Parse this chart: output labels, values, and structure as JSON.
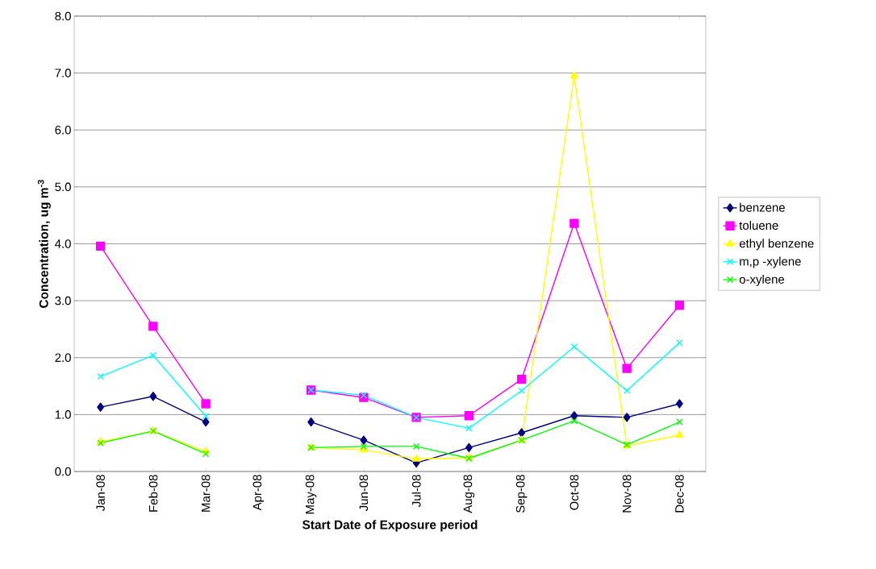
{
  "chart_data": {
    "type": "line",
    "xlabel": "Start Date of Exposure period",
    "ylabel": "Concentration, ug m$^{-3}$",
    "categories": [
      "Jan-08",
      "Feb-08",
      "Mar-08",
      "Apr-08",
      "May-08",
      "Jun-08",
      "Jul-08",
      "Aug-08",
      "Sep-08",
      "Oct-08",
      "Nov-08",
      "Dec-08"
    ],
    "series": [
      {
        "name": "benzene",
        "color": "#000080",
        "marker": "diamond",
        "values": [
          1.13,
          1.32,
          0.87,
          null,
          0.87,
          0.55,
          0.15,
          0.42,
          0.68,
          0.98,
          0.95,
          1.19
        ]
      },
      {
        "name": "toluene",
        "color": "#ff00ff",
        "marker": "square",
        "values": [
          3.96,
          2.55,
          1.19,
          null,
          1.43,
          1.3,
          0.95,
          0.98,
          1.62,
          4.36,
          1.81,
          2.92
        ]
      },
      {
        "name": "ethyl benzene",
        "color": "#ffff00",
        "marker": "triangle",
        "values": [
          0.52,
          0.71,
          0.35,
          null,
          0.42,
          0.38,
          0.22,
          0.24,
          0.55,
          6.95,
          0.45,
          0.64
        ]
      },
      {
        "name": "m,p -xylene",
        "color": "#00ffff",
        "marker": "cross",
        "values": [
          1.67,
          2.04,
          0.97,
          null,
          1.43,
          1.34,
          0.95,
          0.76,
          1.42,
          2.19,
          1.42,
          2.26
        ]
      },
      {
        "name": "o-xylene",
        "color": "#00ff00",
        "marker": "cross",
        "values": [
          0.5,
          0.71,
          0.31,
          null,
          0.42,
          0.44,
          0.44,
          0.23,
          0.55,
          0.89,
          0.47,
          0.87
        ]
      }
    ],
    "ylim": [
      0,
      8
    ],
    "yticks": [
      {
        "value": 0,
        "label": "0.0"
      },
      {
        "value": 1,
        "label": "1.0"
      },
      {
        "value": 2,
        "label": "2.0"
      },
      {
        "value": 3,
        "label": "3.0"
      },
      {
        "value": 4,
        "label": "4.0"
      },
      {
        "value": 5,
        "label": "5.0"
      },
      {
        "value": 6,
        "label": "6.0"
      },
      {
        "value": 7,
        "label": "7.0"
      },
      {
        "value": 8,
        "label": "8.0"
      }
    ],
    "grid": "y",
    "legend": "right"
  }
}
